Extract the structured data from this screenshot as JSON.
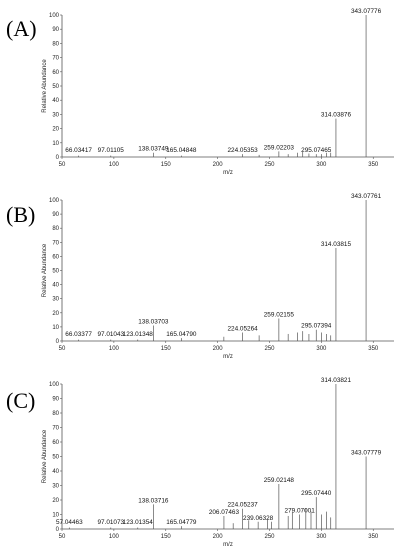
{
  "chart_data": [
    {
      "type": "bar",
      "panel_label": "(A)",
      "xlabel": "m/z",
      "ylabel": "Relative Abundance",
      "xlim": [
        50,
        370
      ],
      "ylim": [
        0,
        100
      ],
      "xticks": [
        50,
        100,
        150,
        200,
        250,
        300,
        350
      ],
      "yticks": [
        0,
        10,
        20,
        30,
        40,
        50,
        60,
        70,
        80,
        90,
        100
      ],
      "peaks": [
        {
          "mz": 66.03417,
          "intensity": 1,
          "label": "66.03417"
        },
        {
          "mz": 97.01105,
          "intensity": 1,
          "label": "97.01105"
        },
        {
          "mz": 138.03749,
          "intensity": 3,
          "label": "138.03749"
        },
        {
          "mz": 165.04848,
          "intensity": 1,
          "label": "165.04848"
        },
        {
          "mz": 224.05353,
          "intensity": 2,
          "label": "224.05353"
        },
        {
          "mz": 259.02203,
          "intensity": 4,
          "label": "259.02203"
        },
        {
          "mz": 295.07465,
          "intensity": 2,
          "label": "295.07465"
        },
        {
          "mz": 314.03876,
          "intensity": 27,
          "label": "314.03876"
        },
        {
          "mz": 343.07776,
          "intensity": 100,
          "label": "343.07776"
        },
        {
          "mz": 240,
          "intensity": 1.5
        },
        {
          "mz": 268,
          "intensity": 2
        },
        {
          "mz": 277,
          "intensity": 3
        },
        {
          "mz": 282,
          "intensity": 3.5
        },
        {
          "mz": 288,
          "intensity": 2.5
        },
        {
          "mz": 300,
          "intensity": 2
        },
        {
          "mz": 305,
          "intensity": 3
        },
        {
          "mz": 309,
          "intensity": 3
        }
      ]
    },
    {
      "type": "bar",
      "panel_label": "(B)",
      "xlabel": "m/z",
      "ylabel": "Relative Abundance",
      "xlim": [
        50,
        370
      ],
      "ylim": [
        0,
        100
      ],
      "xticks": [
        50,
        100,
        150,
        200,
        250,
        300,
        350
      ],
      "yticks": [
        0,
        10,
        20,
        30,
        40,
        50,
        60,
        70,
        80,
        90,
        100
      ],
      "peaks": [
        {
          "mz": 66.03377,
          "intensity": 1,
          "label": "66.03377"
        },
        {
          "mz": 97.01043,
          "intensity": 1,
          "label": "97.01043"
        },
        {
          "mz": 123.01348,
          "intensity": 1,
          "label": "123.01348"
        },
        {
          "mz": 138.03703,
          "intensity": 11,
          "label": "138.03703"
        },
        {
          "mz": 165.0479,
          "intensity": 2,
          "label": "165.04790"
        },
        {
          "mz": 224.05264,
          "intensity": 6,
          "label": "224.05264"
        },
        {
          "mz": 259.02155,
          "intensity": 16,
          "label": "259.02155"
        },
        {
          "mz": 295.07394,
          "intensity": 8,
          "label": "295.07394"
        },
        {
          "mz": 314.03815,
          "intensity": 66,
          "label": "314.03815"
        },
        {
          "mz": 343.07761,
          "intensity": 100,
          "label": "343.07761"
        },
        {
          "mz": 206,
          "intensity": 3
        },
        {
          "mz": 240,
          "intensity": 4
        },
        {
          "mz": 268,
          "intensity": 5
        },
        {
          "mz": 277,
          "intensity": 6
        },
        {
          "mz": 282,
          "intensity": 7
        },
        {
          "mz": 288,
          "intensity": 5
        },
        {
          "mz": 300,
          "intensity": 6
        },
        {
          "mz": 305,
          "intensity": 5
        },
        {
          "mz": 309,
          "intensity": 4
        }
      ]
    },
    {
      "type": "bar",
      "panel_label": "(C)",
      "xlabel": "m/z",
      "ylabel": "Relative Abundance",
      "xlim": [
        50,
        370
      ],
      "ylim": [
        0,
        100
      ],
      "xticks": [
        50,
        100,
        150,
        200,
        250,
        300,
        350
      ],
      "yticks": [
        0,
        10,
        20,
        30,
        40,
        50,
        60,
        70,
        80,
        90,
        100
      ],
      "peaks": [
        {
          "mz": 57.04463,
          "intensity": 1,
          "label": "57.04463"
        },
        {
          "mz": 97.01073,
          "intensity": 1,
          "label": "97.01073"
        },
        {
          "mz": 123.01354,
          "intensity": 1,
          "label": "123.01354"
        },
        {
          "mz": 138.03716,
          "intensity": 17,
          "label": "138.03716"
        },
        {
          "mz": 165.04779,
          "intensity": 2,
          "label": "165.04779"
        },
        {
          "mz": 206.07463,
          "intensity": 9,
          "label": "206.07463"
        },
        {
          "mz": 224.05237,
          "intensity": 14,
          "label": "224.05237"
        },
        {
          "mz": 239.06328,
          "intensity": 5,
          "label": "239.06328"
        },
        {
          "mz": 259.02148,
          "intensity": 31,
          "label": "259.02148"
        },
        {
          "mz": 279.07001,
          "intensity": 10,
          "label": "279.07001"
        },
        {
          "mz": 295.0744,
          "intensity": 22,
          "label": "295.07440"
        },
        {
          "mz": 314.03821,
          "intensity": 100,
          "label": "314.03821"
        },
        {
          "mz": 343.07779,
          "intensity": 50,
          "label": "343.07779"
        },
        {
          "mz": 215,
          "intensity": 4
        },
        {
          "mz": 230,
          "intensity": 6
        },
        {
          "mz": 248,
          "intensity": 7
        },
        {
          "mz": 252,
          "intensity": 5
        },
        {
          "mz": 268,
          "intensity": 9
        },
        {
          "mz": 272,
          "intensity": 12
        },
        {
          "mz": 285,
          "intensity": 14
        },
        {
          "mz": 290,
          "intensity": 12
        },
        {
          "mz": 300,
          "intensity": 10
        },
        {
          "mz": 305,
          "intensity": 12
        },
        {
          "mz": 309,
          "intensity": 8
        }
      ]
    }
  ]
}
